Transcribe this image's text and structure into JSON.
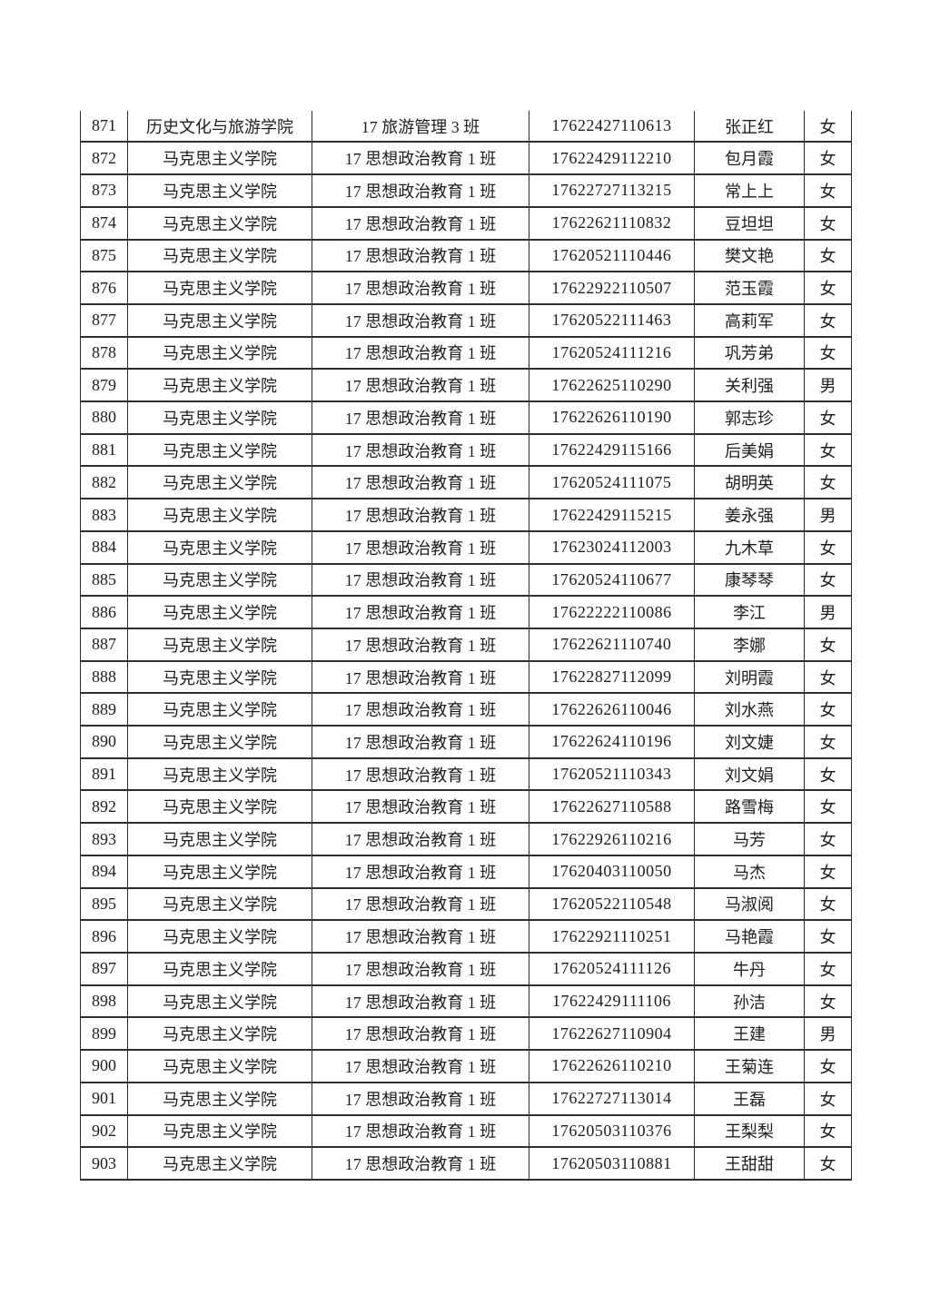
{
  "page": {
    "background_color": "#ffffff",
    "text_color": "#1d1d1d",
    "border_color": "#2e2e2e"
  },
  "table": {
    "columns": [
      "seq",
      "college",
      "class",
      "student_id",
      "name",
      "gender"
    ],
    "rows": [
      [
        "871",
        "历史文化与旅游学院",
        "17 旅游管理 3 班",
        "17622427110613",
        "张正红",
        "女"
      ],
      [
        "872",
        "马克思主义学院",
        "17 思想政治教育 1 班",
        "17622429112210",
        "包月霞",
        "女"
      ],
      [
        "873",
        "马克思主义学院",
        "17 思想政治教育 1 班",
        "17622727113215",
        "常上上",
        "女"
      ],
      [
        "874",
        "马克思主义学院",
        "17 思想政治教育 1 班",
        "17622621110832",
        "豆坦坦",
        "女"
      ],
      [
        "875",
        "马克思主义学院",
        "17 思想政治教育 1 班",
        "17620521110446",
        "樊文艳",
        "女"
      ],
      [
        "876",
        "马克思主义学院",
        "17 思想政治教育 1 班",
        "17622922110507",
        "范玉霞",
        "女"
      ],
      [
        "877",
        "马克思主义学院",
        "17 思想政治教育 1 班",
        "17620522111463",
        "高莉军",
        "女"
      ],
      [
        "878",
        "马克思主义学院",
        "17 思想政治教育 1 班",
        "17620524111216",
        "巩芳弟",
        "女"
      ],
      [
        "879",
        "马克思主义学院",
        "17 思想政治教育 1 班",
        "17622625110290",
        "关利强",
        "男"
      ],
      [
        "880",
        "马克思主义学院",
        "17 思想政治教育 1 班",
        "17622626110190",
        "郭志珍",
        "女"
      ],
      [
        "881",
        "马克思主义学院",
        "17 思想政治教育 1 班",
        "17622429115166",
        "后美娟",
        "女"
      ],
      [
        "882",
        "马克思主义学院",
        "17 思想政治教育 1 班",
        "17620524111075",
        "胡明英",
        "女"
      ],
      [
        "883",
        "马克思主义学院",
        "17 思想政治教育 1 班",
        "17622429115215",
        "姜永强",
        "男"
      ],
      [
        "884",
        "马克思主义学院",
        "17 思想政治教育 1 班",
        "17623024112003",
        "九木草",
        "女"
      ],
      [
        "885",
        "马克思主义学院",
        "17 思想政治教育 1 班",
        "17620524110677",
        "康琴琴",
        "女"
      ],
      [
        "886",
        "马克思主义学院",
        "17 思想政治教育 1 班",
        "17622222110086",
        "李江",
        "男"
      ],
      [
        "887",
        "马克思主义学院",
        "17 思想政治教育 1 班",
        "17622621110740",
        "李娜",
        "女"
      ],
      [
        "888",
        "马克思主义学院",
        "17 思想政治教育 1 班",
        "17622827112099",
        "刘明霞",
        "女"
      ],
      [
        "889",
        "马克思主义学院",
        "17 思想政治教育 1 班",
        "17622626110046",
        "刘水燕",
        "女"
      ],
      [
        "890",
        "马克思主义学院",
        "17 思想政治教育 1 班",
        "17622624110196",
        "刘文婕",
        "女"
      ],
      [
        "891",
        "马克思主义学院",
        "17 思想政治教育 1 班",
        "17620521110343",
        "刘文娟",
        "女"
      ],
      [
        "892",
        "马克思主义学院",
        "17 思想政治教育 1 班",
        "17622627110588",
        "路雪梅",
        "女"
      ],
      [
        "893",
        "马克思主义学院",
        "17 思想政治教育 1 班",
        "17622926110216",
        "马芳",
        "女"
      ],
      [
        "894",
        "马克思主义学院",
        "17 思想政治教育 1 班",
        "17620403110050",
        "马杰",
        "女"
      ],
      [
        "895",
        "马克思主义学院",
        "17 思想政治教育 1 班",
        "17620522110548",
        "马淑阅",
        "女"
      ],
      [
        "896",
        "马克思主义学院",
        "17 思想政治教育 1 班",
        "17622921110251",
        "马艳霞",
        "女"
      ],
      [
        "897",
        "马克思主义学院",
        "17 思想政治教育 1 班",
        "17620524111126",
        "牛丹",
        "女"
      ],
      [
        "898",
        "马克思主义学院",
        "17 思想政治教育 1 班",
        "17622429111106",
        "孙洁",
        "女"
      ],
      [
        "899",
        "马克思主义学院",
        "17 思想政治教育 1 班",
        "17622627110904",
        "王建",
        "男"
      ],
      [
        "900",
        "马克思主义学院",
        "17 思想政治教育 1 班",
        "17622626110210",
        "王菊连",
        "女"
      ],
      [
        "901",
        "马克思主义学院",
        "17 思想政治教育 1 班",
        "17622727113014",
        "王磊",
        "女"
      ],
      [
        "902",
        "马克思主义学院",
        "17 思想政治教育 1 班",
        "17620503110376",
        "王梨梨",
        "女"
      ],
      [
        "903",
        "马克思主义学院",
        "17 思想政治教育 1 班",
        "17620503110881",
        "王甜甜",
        "女"
      ]
    ]
  }
}
